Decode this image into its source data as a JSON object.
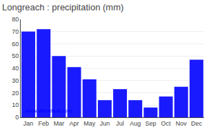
{
  "chart_data": {
    "type": "bar",
    "title": "Longreach : precipitation (mm)",
    "categories": [
      "Jan",
      "Feb",
      "Mar",
      "Apr",
      "May",
      "Jun",
      "Jul",
      "Aug",
      "Sep",
      "Oct",
      "Nov",
      "Dec"
    ],
    "values": [
      70,
      72,
      50,
      41,
      31,
      14,
      23,
      14,
      8,
      17,
      25,
      47
    ],
    "color": "#1a1aff",
    "ylim": [
      0,
      80
    ],
    "yticks": [
      0,
      10,
      20,
      30,
      40,
      50,
      60,
      70,
      80
    ],
    "grid": true,
    "annotations": [
      "www.allmetsat.com"
    ]
  }
}
